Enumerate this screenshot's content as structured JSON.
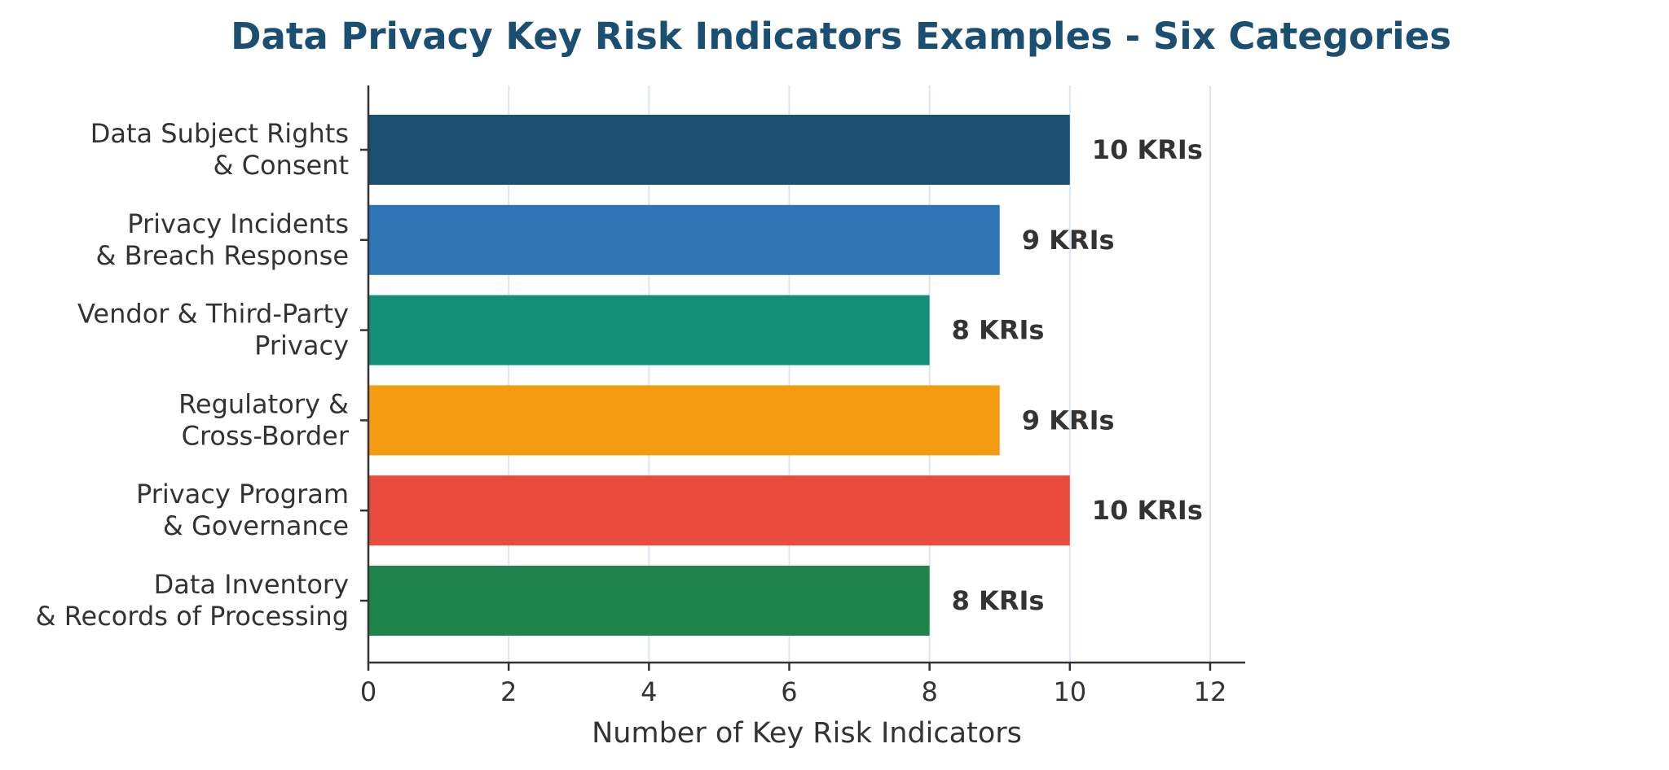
{
  "chart_data": {
    "type": "bar",
    "orientation": "horizontal",
    "title": "Data Privacy Key Risk Indicators Examples - Six Categories",
    "xlabel": "Number of Key Risk Indicators",
    "ylabel": "",
    "xlim": [
      0,
      12.5
    ],
    "x_ticks": [
      0,
      2,
      4,
      6,
      8,
      10,
      12
    ],
    "x_tick_labels": [
      "0",
      "2",
      "4",
      "6",
      "8",
      "10",
      "12"
    ],
    "grid": "vertical",
    "categories": [
      [
        "Data Subject Rights",
        "& Consent"
      ],
      [
        "Privacy Incidents",
        "& Breach Response"
      ],
      [
        "Vendor & Third-Party",
        "Privacy"
      ],
      [
        "Regulatory &",
        "Cross-Border"
      ],
      [
        "Privacy Program",
        "& Governance"
      ],
      [
        "Data Inventory",
        "& Records of Processing"
      ]
    ],
    "values": [
      10,
      9,
      8,
      9,
      10,
      8
    ],
    "value_labels": [
      "10 KRIs",
      "9 KRIs",
      "8 KRIs",
      "9 KRIs",
      "10 KRIs",
      "8 KRIs"
    ],
    "colors": [
      "#1b4f72",
      "#2e75b6",
      "#148f77",
      "#f39c12",
      "#e74c3c",
      "#1e8449"
    ]
  }
}
